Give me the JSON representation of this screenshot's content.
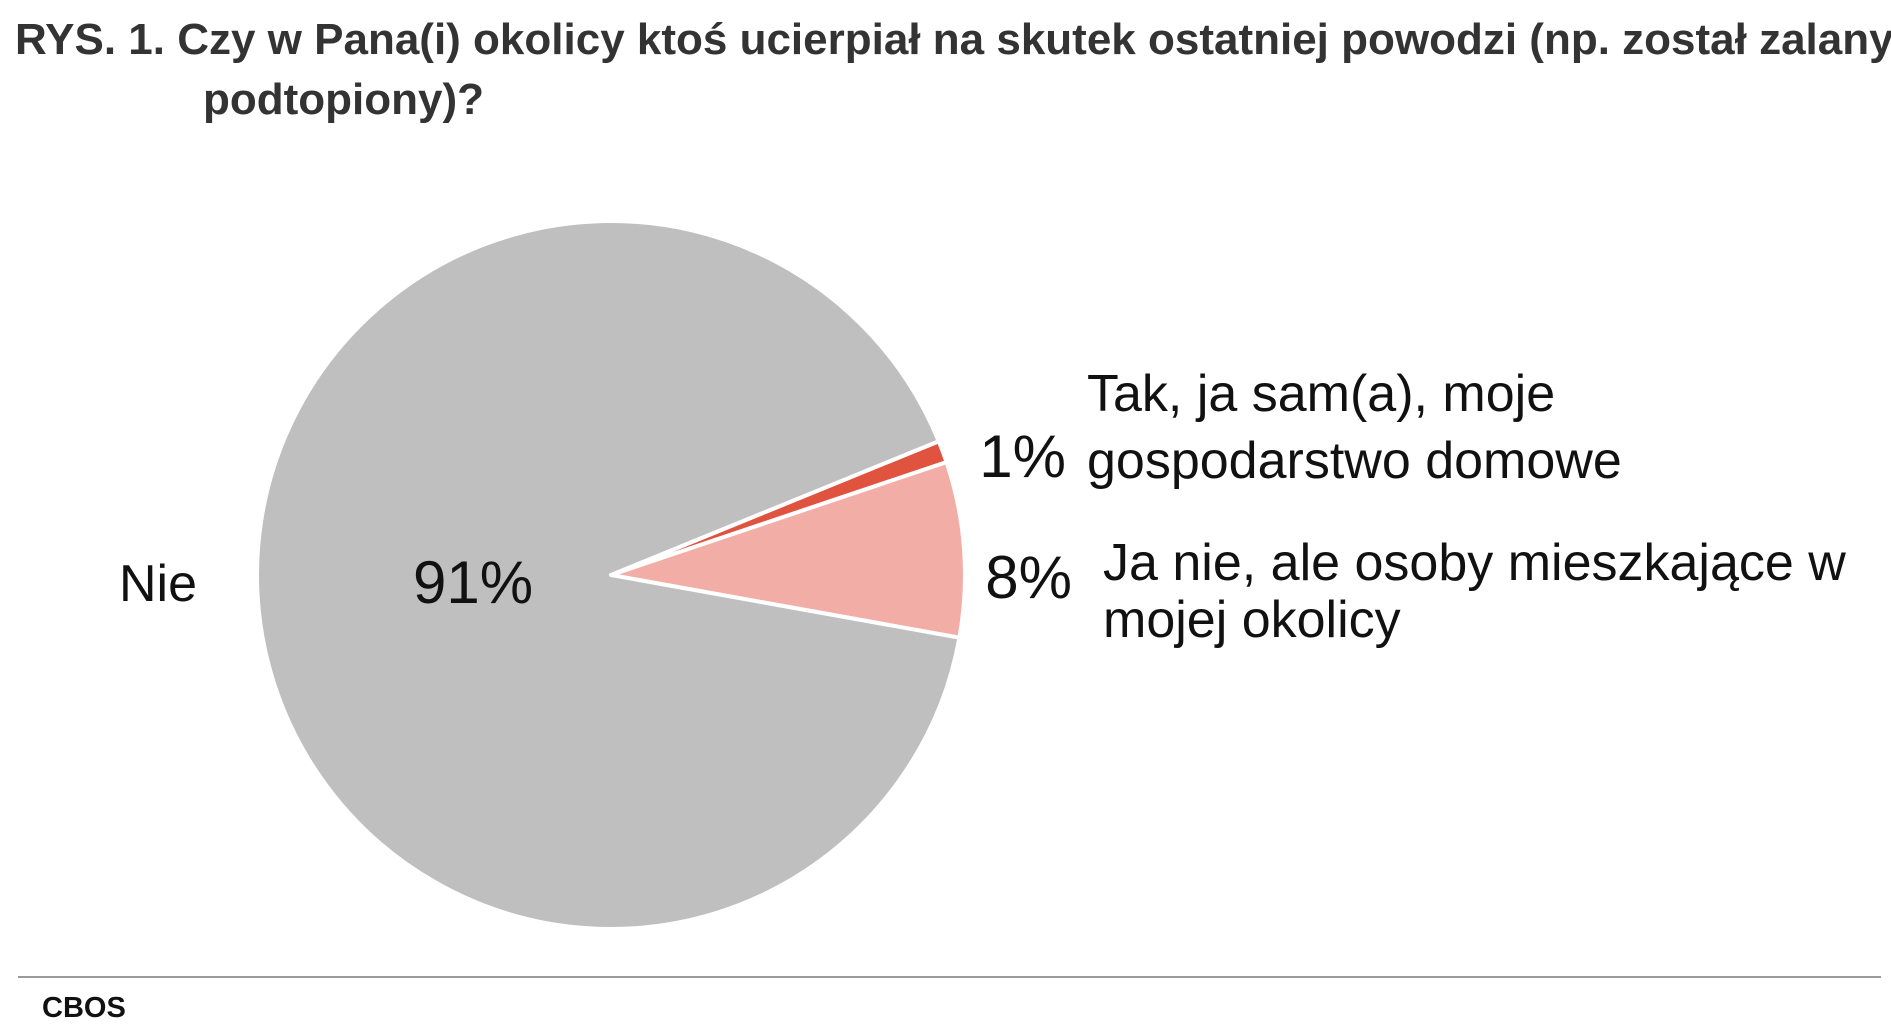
{
  "chart_data": {
    "type": "pie",
    "title": "RYS. 1. Czy w Pana(i) okolicy ktoś ucierpiał na skutek ostatniej powodzi (np. został zalany, podtopiony)?",
    "categories": [
      "Tak, ja sam(a), moje gospodarstwo domowe",
      "Ja nie, ale osoby mieszkające w mojej okolicy",
      "Nie"
    ],
    "values": [
      1,
      8,
      91
    ],
    "value_labels": [
      "1%",
      "8%",
      "91%"
    ],
    "colors": [
      "#e0533f",
      "#f2aea6",
      "#bfbfbf"
    ],
    "source": "CBOS"
  }
}
